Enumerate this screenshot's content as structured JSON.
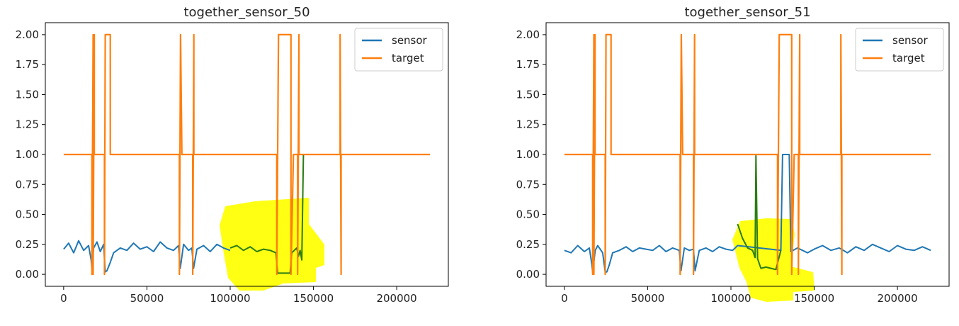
{
  "chart_data": [
    {
      "type": "line",
      "title": "together_sensor_50",
      "xlabel": "",
      "ylabel": "",
      "xlim": [
        -11000,
        231000
      ],
      "ylim": [
        -0.1,
        2.1
      ],
      "x_ticks": [
        0,
        50000,
        100000,
        150000,
        200000
      ],
      "y_ticks": [
        0.0,
        0.25,
        0.5,
        0.75,
        1.0,
        1.25,
        1.5,
        1.75,
        2.0
      ],
      "x_tick_labels": [
        "0",
        "50000",
        "100000",
        "150000",
        "200000"
      ],
      "y_tick_labels": [
        "0.00",
        "0.25",
        "0.50",
        "0.75",
        "1.00",
        "1.25",
        "1.50",
        "1.75",
        "2.00"
      ],
      "legend": {
        "position": "top-right",
        "entries": [
          "sensor",
          "target"
        ]
      },
      "colors": {
        "sensor": "#1f77b4",
        "target": "#ff7f0e",
        "highlight_line": "#2a7d12",
        "marker": "#ffff00"
      },
      "series": [
        {
          "name": "target",
          "x": [
            0,
            17000,
            17000,
            17700,
            17700,
            18400,
            18400,
            24500,
            24500,
            25000,
            25000,
            28000,
            28000,
            69500,
            69500,
            70200,
            70200,
            71000,
            71000,
            77500,
            77500,
            78200,
            78200,
            128000,
            128000,
            129000,
            129000,
            136500,
            136500,
            138000,
            138000,
            140500,
            140500,
            141300,
            141300,
            166000,
            166000,
            166600,
            166600,
            220000
          ],
          "y": [
            1,
            1,
            0,
            2,
            0,
            2,
            1,
            1,
            0,
            2,
            2,
            2,
            1,
            1,
            0,
            2,
            2,
            1,
            1,
            1,
            0,
            2,
            1,
            1,
            0,
            2,
            2,
            2,
            0,
            1,
            1,
            1,
            0,
            2,
            1,
            1,
            2,
            0,
            1,
            1
          ]
        },
        {
          "name": "sensor",
          "x": [
            0,
            3000,
            6000,
            9000,
            12000,
            15000,
            16500,
            17000,
            18000,
            20000,
            22000,
            24000,
            25000,
            26000,
            28000,
            30000,
            34000,
            38000,
            42000,
            46000,
            50000,
            54000,
            58000,
            62000,
            66000,
            69000,
            70000,
            72000,
            75000,
            77000,
            78000,
            80000,
            84000,
            88000,
            92000,
            96000,
            100000
          ],
          "y": [
            0.21,
            0.26,
            0.18,
            0.28,
            0.2,
            0.24,
            0.12,
            0.05,
            0.22,
            0.27,
            0.19,
            0.25,
            0.02,
            0.03,
            0.1,
            0.18,
            0.22,
            0.2,
            0.26,
            0.21,
            0.23,
            0.19,
            0.27,
            0.22,
            0.2,
            0.24,
            0.05,
            0.25,
            0.2,
            0.22,
            0.05,
            0.21,
            0.24,
            0.19,
            0.25,
            0.22,
            0.2
          ]
        },
        {
          "name": "",
          "x": [
            100000,
            104000,
            108000,
            112000,
            116000,
            120000,
            124000,
            127500,
            128500,
            130000,
            133000,
            136000,
            137000,
            140000,
            141000,
            142000,
            143000,
            144000
          ],
          "y": [
            0.22,
            0.24,
            0.2,
            0.23,
            0.19,
            0.21,
            0.2,
            0.18,
            0.01,
            0.01,
            0.01,
            0.01,
            0.18,
            0.22,
            0.15,
            0.2,
            0.12,
            1.0
          ]
        }
      ]
    },
    {
      "type": "line",
      "title": "together_sensor_51",
      "xlabel": "",
      "ylabel": "",
      "xlim": [
        -11000,
        231000
      ],
      "ylim": [
        -0.1,
        2.1
      ],
      "x_ticks": [
        0,
        50000,
        100000,
        150000,
        200000
      ],
      "y_ticks": [
        0.0,
        0.25,
        0.5,
        0.75,
        1.0,
        1.25,
        1.5,
        1.75,
        2.0
      ],
      "x_tick_labels": [
        "0",
        "50000",
        "100000",
        "150000",
        "200000"
      ],
      "y_tick_labels": [
        "0.00",
        "0.25",
        "0.50",
        "0.75",
        "1.00",
        "1.25",
        "1.50",
        "1.75",
        "2.00"
      ],
      "legend": {
        "position": "top-right",
        "entries": [
          "sensor",
          "target"
        ]
      },
      "colors": {
        "sensor": "#1f77b4",
        "target": "#ff7f0e",
        "highlight_line": "#2a7d12",
        "marker": "#ffff00"
      },
      "series": [
        {
          "name": "target",
          "x": [
            0,
            17000,
            17000,
            17700,
            17700,
            18400,
            18400,
            24500,
            24500,
            25000,
            25000,
            28000,
            28000,
            69500,
            69500,
            70200,
            70200,
            71000,
            71000,
            77500,
            77500,
            78200,
            78200,
            128000,
            128000,
            129000,
            129000,
            136500,
            136500,
            138000,
            138000,
            140500,
            140500,
            141300,
            141300,
            166000,
            166000,
            166600,
            166600,
            220000
          ],
          "y": [
            1,
            1,
            0,
            2,
            0,
            2,
            1,
            1,
            0,
            2,
            2,
            2,
            1,
            1,
            0,
            2,
            2,
            1,
            1,
            1,
            0,
            2,
            1,
            1,
            0,
            2,
            2,
            2,
            0,
            1,
            1,
            1,
            0,
            2,
            1,
            1,
            2,
            0,
            1,
            1
          ]
        },
        {
          "name": "sensor",
          "x": [
            0,
            4000,
            8000,
            12000,
            15000,
            16500,
            17000,
            18500,
            20000,
            23000,
            24500,
            25500,
            27000,
            29000,
            33000,
            37000,
            41000,
            45000,
            49000,
            53000,
            57000,
            61000,
            65000,
            69000,
            70000,
            72000,
            75000,
            77500,
            78500,
            81000,
            85000,
            89000,
            93000,
            97000,
            101000,
            104000,
            130000,
            131000,
            135000,
            136000,
            140000,
            146000,
            150000,
            155000,
            160000,
            165000,
            170000,
            175000,
            180000,
            185000,
            190000,
            195000,
            200000,
            205000,
            210000,
            215000,
            220000
          ],
          "y": [
            0.2,
            0.18,
            0.24,
            0.19,
            0.22,
            0.08,
            0.02,
            0.2,
            0.24,
            0.18,
            0.02,
            0.02,
            0.08,
            0.18,
            0.2,
            0.23,
            0.19,
            0.22,
            0.21,
            0.2,
            0.24,
            0.19,
            0.22,
            0.2,
            0.03,
            0.22,
            0.2,
            0.21,
            0.03,
            0.2,
            0.22,
            0.19,
            0.23,
            0.21,
            0.2,
            0.24,
            0.2,
            1.0,
            1.0,
            0.19,
            0.22,
            0.18,
            0.21,
            0.24,
            0.2,
            0.22,
            0.18,
            0.23,
            0.2,
            0.25,
            0.22,
            0.19,
            0.24,
            0.21,
            0.2,
            0.23,
            0.2
          ]
        },
        {
          "name": "",
          "x": [
            104000,
            107000,
            110000,
            113000,
            114500,
            115000,
            116000,
            118000,
            121000,
            124000,
            127000,
            130000
          ],
          "y": [
            0.42,
            0.3,
            0.22,
            0.2,
            0.14,
            0.99,
            0.13,
            0.05,
            0.06,
            0.05,
            0.04,
            0.2
          ]
        }
      ]
    }
  ]
}
